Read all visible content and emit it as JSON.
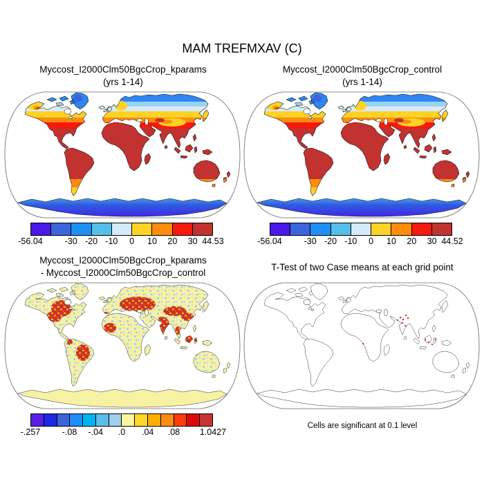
{
  "figure": {
    "main_title": "MAM TREFMXAV (C)",
    "background_color": "#ffffff",
    "panels": [
      {
        "id": "kparams",
        "title_lines": [
          "Myccost_I2000Clm50BgcCrop_kparams",
          "(yrs 1-14)"
        ]
      },
      {
        "id": "control",
        "title_lines": [
          "Myccost_I2000Clm50BgcCrop_control",
          "(yrs 1-14)"
        ]
      },
      {
        "id": "diff",
        "title_lines": [
          "Myccost_I2000Clm50BgcCrop_kparams",
          "- Myccost_I2000Clm50BgcCrop_control"
        ]
      },
      {
        "id": "ttest",
        "title_lines": [
          "T-Test of two Case means at each grid point"
        ],
        "caption": "Cells are significant at 0.1 level"
      }
    ]
  },
  "chart_data": [
    {
      "panel": "top-left",
      "type": "heatmap",
      "subtype": "filled-contour global map, Robinson projection, white ocean",
      "title": "Myccost_I2000Clm50BgcCrop_kparams (yrs 1-14)",
      "variable": "MAM TREFMXAV (C)",
      "min": -56.04,
      "max": 44.53,
      "contour_levels": [
        -40,
        -30,
        -20,
        -10,
        0,
        10,
        20,
        30
      ],
      "colorbar": {
        "n_boxes": 9,
        "colors": [
          "#4a18e8",
          "#3c64dc",
          "#1e90f5",
          "#55beea",
          "#d4eaf8",
          "#ffd226",
          "#ff8c0a",
          "#f5190f",
          "#c23230"
        ],
        "tick_labels": [
          "-56.04",
          "-30",
          "-20",
          "-10",
          "0",
          "10",
          "20",
          "30",
          "44.53"
        ],
        "tick_boundary_index": [
          0,
          2,
          3,
          4,
          5,
          6,
          7,
          8,
          9
        ]
      }
    },
    {
      "panel": "top-right",
      "type": "heatmap",
      "subtype": "filled-contour global map, Robinson projection, white ocean",
      "title": "Myccost_I2000Clm50BgcCrop_control (yrs 1-14)",
      "variable": "MAM TREFMXAV (C)",
      "min": -56.04,
      "max": 44.52,
      "contour_levels": [
        -40,
        -30,
        -20,
        -10,
        0,
        10,
        20,
        30
      ],
      "colorbar": {
        "n_boxes": 9,
        "colors": [
          "#4a18e8",
          "#3c64dc",
          "#1e90f5",
          "#55beea",
          "#d4eaf8",
          "#ffd226",
          "#ff8c0a",
          "#f5190f",
          "#c23230"
        ],
        "tick_labels": [
          "-56.04",
          "-30",
          "-20",
          "-10",
          "0",
          "10",
          "20",
          "30",
          "44.52"
        ],
        "tick_boundary_index": [
          0,
          2,
          3,
          4,
          5,
          6,
          7,
          8,
          9
        ]
      }
    },
    {
      "panel": "bottom-left",
      "type": "heatmap",
      "subtype": "difference map (kparams minus control), Robinson projection, white ocean",
      "title": "Myccost_I2000Clm50BgcCrop_kparams - Myccost_I2000Clm50BgcCrop_control",
      "variable": "MAM TREFMXAV (C) difference",
      "min": -0.257,
      "max": 1.0427,
      "contour_levels": [
        -0.12,
        -0.1,
        -0.08,
        -0.06,
        -0.04,
        -0.02,
        0,
        0.02,
        0.04,
        0.06,
        0.08,
        0.1,
        0.12
      ],
      "colorbar": {
        "n_boxes": 14,
        "colors": [
          "#5a1ee6",
          "#1e28e6",
          "#3c64d7",
          "#1e8cfa",
          "#00b4f0",
          "#5abee8",
          "#a0d0ec",
          "#faf5a0",
          "#ffd728",
          "#ffaf00",
          "#ff8c14",
          "#ff3c0a",
          "#dc0a0a",
          "#c83232"
        ],
        "tick_labels": [
          "-.257",
          "-.08",
          "-.04",
          ".0",
          ".04",
          ".08",
          "1.0427"
        ],
        "tick_boundary_index": [
          0,
          3,
          5,
          7,
          9,
          11,
          14
        ]
      }
    },
    {
      "panel": "bottom-right",
      "type": "map",
      "subtype": "t-test significance outline map, Robinson projection",
      "title": "T-Test of two Case means at each grid point",
      "note": "Cells are significant at 0.1 level",
      "significance_level": 0.1,
      "significant_color": "#e03434",
      "significant_regions": [
        "northwest India / Pakistan",
        "east India coast",
        "Borneo / Indonesia",
        "Angola coast"
      ]
    }
  ]
}
